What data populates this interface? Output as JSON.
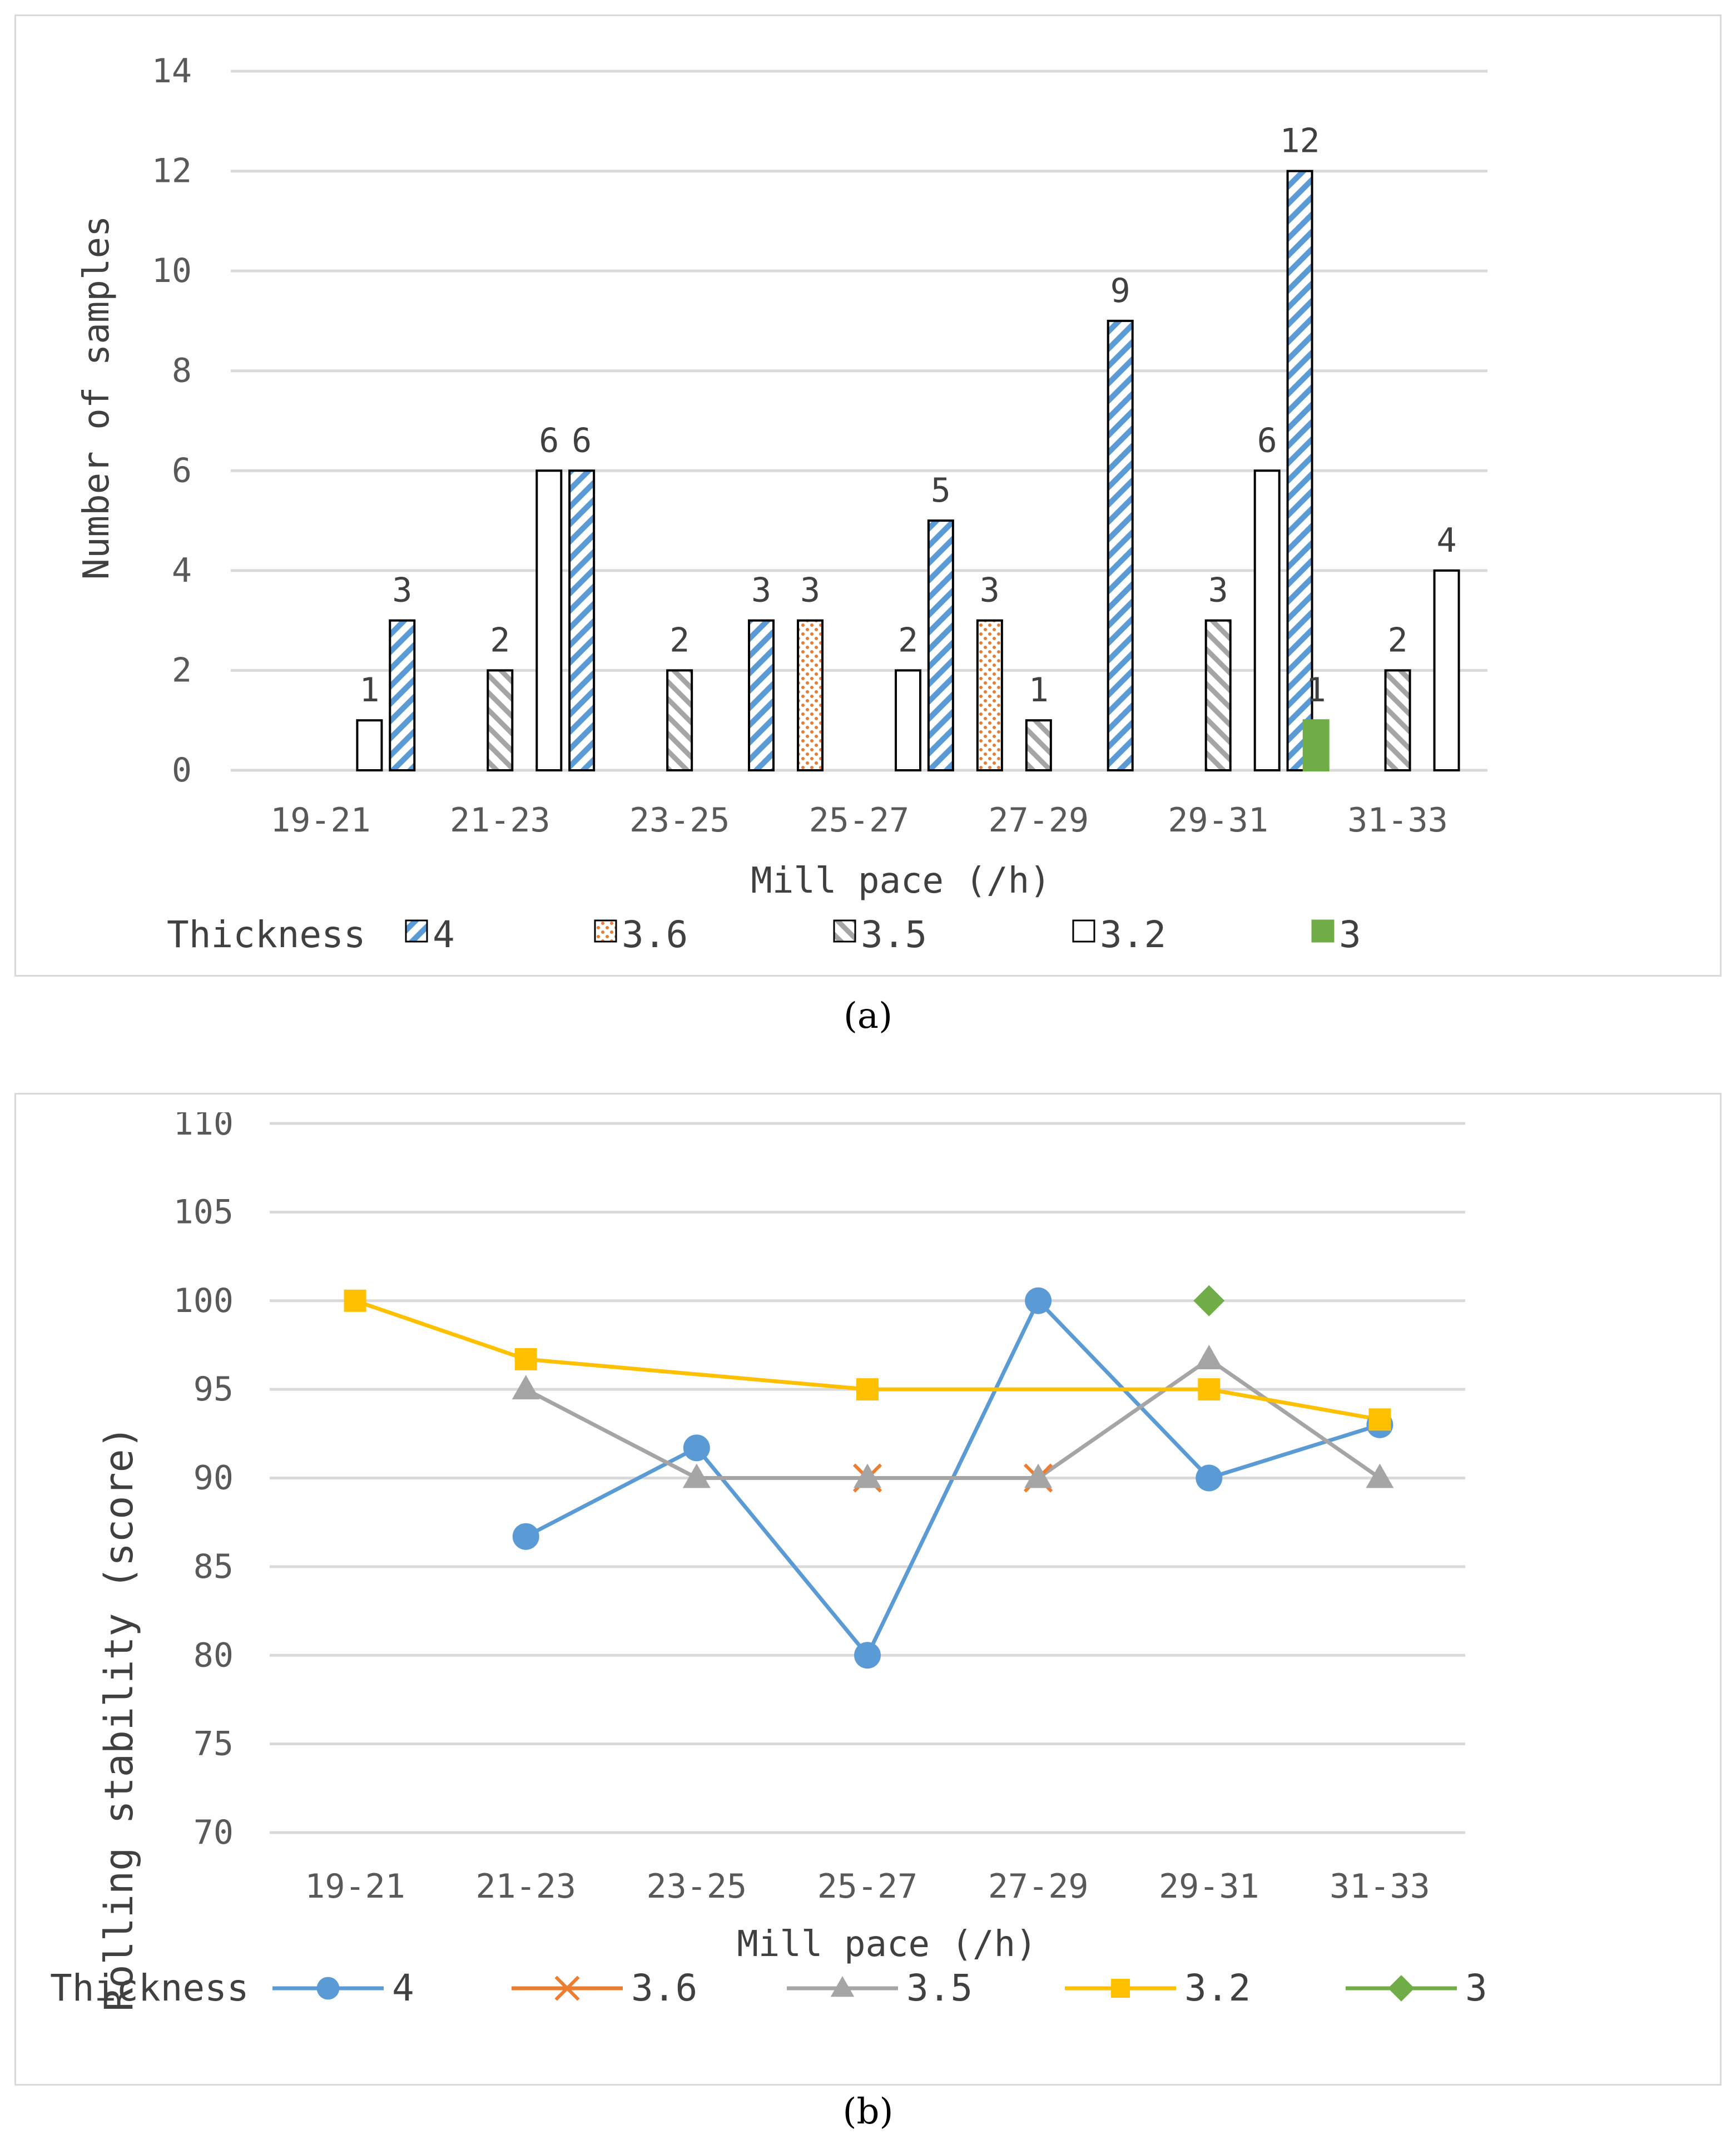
{
  "chart_data": [
    {
      "id": "a",
      "type": "bar",
      "caption_label": "(a)",
      "xlabel": "Mill pace (/h)",
      "ylabel": "Number of samples",
      "ylim": [
        0,
        14
      ],
      "yticks": [
        0,
        2,
        4,
        6,
        8,
        10,
        12,
        14
      ],
      "grid": true,
      "categories": [
        "19-21",
        "21-23",
        "23-25",
        "25-27",
        "27-29",
        "29-31",
        "31-33"
      ],
      "legend_title": "Thickness",
      "legend_position": "bottom",
      "series": [
        {
          "name": "4",
          "pattern": "diagonal-blue",
          "color": "#5B9BD5",
          "values": [
            null,
            3,
            6,
            3,
            5,
            9,
            12
          ]
        },
        {
          "name": "3.6",
          "pattern": "dots-orange",
          "color": "#ED7D31",
          "values": [
            null,
            null,
            null,
            3,
            3,
            null,
            null
          ]
        },
        {
          "name": "3.5",
          "pattern": "diagonal-gray",
          "color": "#A5A5A5",
          "values": [
            null,
            2,
            2,
            null,
            1,
            3,
            2
          ]
        },
        {
          "name": "3.2",
          "pattern": "none",
          "color": "#FFFFFF",
          "values": [
            1,
            6,
            null,
            2,
            null,
            6,
            4
          ]
        },
        {
          "name": "3",
          "pattern": "solid-green",
          "color": "#70AD47",
          "values": [
            null,
            null,
            null,
            null,
            null,
            1,
            null
          ]
        }
      ]
    },
    {
      "id": "b",
      "type": "line",
      "caption_label": "(b)",
      "xlabel": "Mill pace (/h)",
      "ylabel": "Rolling stability (score)",
      "ylim": [
        70,
        110
      ],
      "yticks": [
        70,
        75,
        80,
        85,
        90,
        95,
        100,
        105,
        110
      ],
      "grid": true,
      "categories": [
        "19-21",
        "21-23",
        "23-25",
        "25-27",
        "27-29",
        "29-31",
        "31-33"
      ],
      "legend_title": "Thickness",
      "legend_position": "bottom",
      "series": [
        {
          "name": "4",
          "marker": "circle",
          "color": "#5B9BD5",
          "values": [
            null,
            86.7,
            91.7,
            80,
            100,
            90,
            93
          ]
        },
        {
          "name": "3.6",
          "marker": "x",
          "color": "#ED7D31",
          "values": [
            null,
            null,
            null,
            90,
            90,
            null,
            null
          ]
        },
        {
          "name": "3.5",
          "marker": "triangle",
          "color": "#A5A5A5",
          "values": [
            null,
            95,
            90,
            90,
            90,
            96.7,
            90
          ]
        },
        {
          "name": "3.2",
          "marker": "square",
          "color": "#FFC000",
          "values": [
            100,
            96.7,
            null,
            95,
            null,
            95,
            93.3
          ]
        },
        {
          "name": "3",
          "marker": "diamond",
          "color": "#70AD47",
          "values": [
            null,
            null,
            null,
            null,
            null,
            100,
            null
          ]
        }
      ]
    }
  ]
}
